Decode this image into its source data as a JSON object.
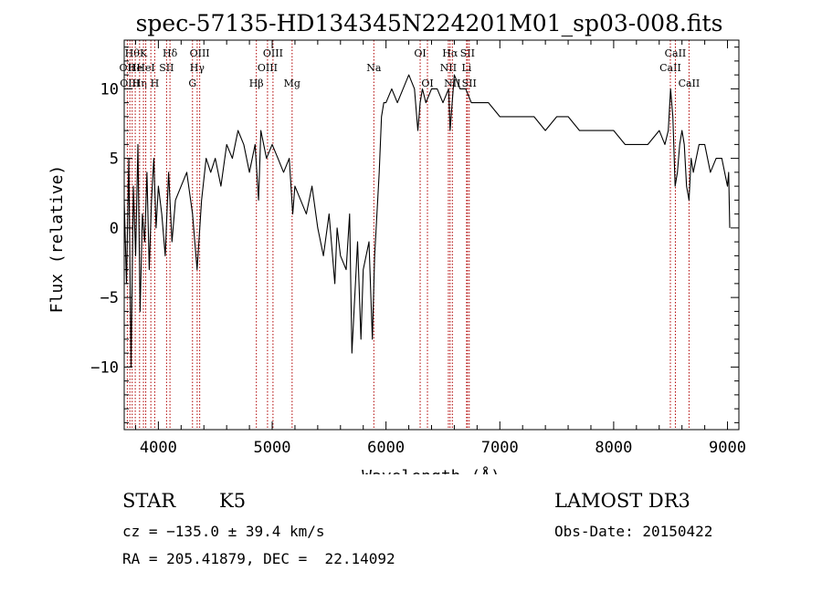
{
  "chart_data": {
    "type": "line",
    "title": "spec-57135-HD134345N224201M01_sp03-008.fits",
    "xlabel": "Wavelength (Å)",
    "ylabel": "Flux (relative)",
    "xlim": [
      3700,
      9100
    ],
    "ylim": [
      -14.5,
      13.5
    ],
    "x_ticks": [
      4000,
      5000,
      6000,
      7000,
      8000,
      9000
    ],
    "y_ticks": [
      10,
      5,
      0,
      -5,
      -10
    ],
    "x_tick_labels": [
      "4000",
      "5000",
      "6000",
      "7000",
      "8000",
      "9000"
    ],
    "y_tick_labels": [
      "10",
      "5",
      "0",
      "−5",
      "−10"
    ],
    "grid": false,
    "line_color": "#000000",
    "marker_color": "#b00000",
    "series": [
      {
        "name": "flux",
        "x": [
          3700,
          3720,
          3740,
          3760,
          3780,
          3800,
          3820,
          3840,
          3860,
          3880,
          3900,
          3920,
          3940,
          3960,
          3980,
          4000,
          4030,
          4060,
          4090,
          4120,
          4150,
          4200,
          4250,
          4300,
          4340,
          4380,
          4420,
          4460,
          4500,
          4550,
          4600,
          4650,
          4700,
          4750,
          4800,
          4850,
          4880,
          4900,
          4950,
          5000,
          5050,
          5100,
          5150,
          5180,
          5200,
          5250,
          5300,
          5350,
          5400,
          5450,
          5500,
          5550,
          5570,
          5600,
          5650,
          5680,
          5700,
          5750,
          5780,
          5800,
          5850,
          5880,
          5900,
          5920,
          5940,
          5960,
          5980,
          6000,
          6050,
          6100,
          6150,
          6200,
          6250,
          6280,
          6300,
          6320,
          6350,
          6400,
          6450,
          6500,
          6550,
          6563,
          6600,
          6650,
          6700,
          6750,
          6800,
          6900,
          7000,
          7100,
          7200,
          7300,
          7400,
          7500,
          7600,
          7700,
          7800,
          7900,
          8000,
          8100,
          8200,
          8300,
          8400,
          8450,
          8480,
          8500,
          8520,
          8540,
          8560,
          8580,
          8600,
          8620,
          8640,
          8662,
          8680,
          8700,
          8750,
          8800,
          8850,
          8900,
          8950,
          9000,
          9010,
          9020
        ],
        "y": [
          2,
          -4,
          5,
          -10,
          3,
          -2,
          6,
          -6,
          1,
          -1,
          4,
          -3,
          2,
          5,
          0,
          3,
          1,
          -2,
          4,
          -1,
          2,
          3,
          4,
          1,
          -3,
          2,
          5,
          4,
          5,
          3,
          6,
          5,
          7,
          6,
          4,
          6,
          2,
          7,
          5,
          6,
          5,
          4,
          5,
          1,
          3,
          2,
          1,
          3,
          0,
          -2,
          1,
          -4,
          0,
          -2,
          -3,
          1,
          -9,
          -1,
          -8,
          -3,
          -1,
          -8,
          -2,
          1,
          4,
          8,
          9,
          9,
          10,
          9,
          10,
          11,
          10,
          7,
          9,
          10,
          9,
          10,
          10,
          9,
          10,
          7,
          11,
          10,
          10,
          9,
          9,
          9,
          8,
          8,
          8,
          8,
          7,
          8,
          8,
          7,
          7,
          7,
          7,
          6,
          6,
          6,
          7,
          6,
          7,
          10,
          8,
          3,
          4,
          6,
          7,
          6,
          3,
          2,
          5,
          4,
          6,
          6,
          4,
          5,
          5,
          3,
          4,
          0
        ]
      }
    ],
    "line_markers": [
      {
        "wavelength": 3727,
        "label": "OII",
        "row": 1
      },
      {
        "wavelength": 3750,
        "label": "OIII",
        "row": 2
      },
      {
        "wavelength": 3770,
        "label": "Hθ",
        "row": 0
      },
      {
        "wavelength": 3797,
        "label": "He",
        "row": 1
      },
      {
        "wavelength": 3835,
        "label": "Hη",
        "row": 2
      },
      {
        "wavelength": 3869,
        "label": "K",
        "row": 0
      },
      {
        "wavelength": 3889,
        "label": "HeI",
        "row": 1
      },
      {
        "wavelength": 3934,
        "label": "",
        "row": 0
      },
      {
        "wavelength": 3968,
        "label": "H",
        "row": 2
      },
      {
        "wavelength": 4072,
        "label": "SII",
        "row": 1
      },
      {
        "wavelength": 4102,
        "label": "Hδ",
        "row": 0
      },
      {
        "wavelength": 4300,
        "label": "G",
        "row": 2
      },
      {
        "wavelength": 4341,
        "label": "Hγ",
        "row": 1
      },
      {
        "wavelength": 4363,
        "label": "OIII",
        "row": 0
      },
      {
        "wavelength": 4861,
        "label": "Hβ",
        "row": 2
      },
      {
        "wavelength": 4959,
        "label": "OIII",
        "row": 1
      },
      {
        "wavelength": 5007,
        "label": "OIII",
        "row": 0
      },
      {
        "wavelength": 5175,
        "label": "Mg",
        "row": 2
      },
      {
        "wavelength": 5893,
        "label": "Na",
        "row": 1
      },
      {
        "wavelength": 6300,
        "label": "OI",
        "row": 0
      },
      {
        "wavelength": 6364,
        "label": "OI",
        "row": 2
      },
      {
        "wavelength": 6548,
        "label": "NII",
        "row": 1
      },
      {
        "wavelength": 6563,
        "label": "Hα",
        "row": 0
      },
      {
        "wavelength": 6583,
        "label": "NII",
        "row": 2
      },
      {
        "wavelength": 6708,
        "label": "Li",
        "row": 1
      },
      {
        "wavelength": 6716,
        "label": "SII",
        "row": 0
      },
      {
        "wavelength": 6731,
        "label": "SII",
        "row": 2
      },
      {
        "wavelength": 8498,
        "label": "CaII",
        "row": 1
      },
      {
        "wavelength": 8542,
        "label": "CaII",
        "row": 0
      },
      {
        "wavelength": 8662,
        "label": "CaII",
        "row": 2
      }
    ]
  },
  "info": {
    "class": "STAR",
    "subclass": "K5",
    "survey": "LAMOST DR3",
    "cz": "cz = −135.0 ± 39.4 km/s",
    "obs_date": "Obs-Date: 20150422",
    "coords": "RA = 205.41879, DEC =  22.14092"
  }
}
